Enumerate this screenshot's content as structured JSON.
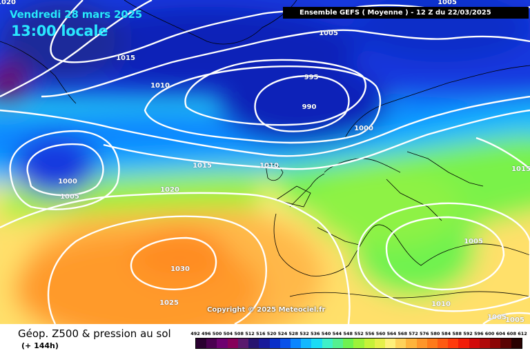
{
  "header": {
    "date": "Vendredi 28 mars 2025",
    "time": "13:00 locale",
    "run": "Ensemble GEFS  ( Moyenne )  -  12 Z du 22/03/2025"
  },
  "copyright": "Copyright © 2025 Meteociel.fr",
  "footer": {
    "title": "Géop. Z500 & pression au sol",
    "subtitle": "(+ 144h)"
  },
  "isobar_labels": [
    "1005",
    "1015",
    "1010",
    "995",
    "990",
    "1000",
    "1015",
    "1010",
    "1000",
    "1005",
    "1020",
    "1030",
    "1025",
    "1005",
    "1010",
    "1005",
    "1005",
    "1015",
    "1020",
    "1005"
  ],
  "color_scale": {
    "labels": [
      "492",
      "496",
      "500",
      "504",
      "508",
      "512",
      "516",
      "520",
      "524",
      "528",
      "532",
      "536",
      "540",
      "544",
      "548",
      "552",
      "556",
      "560",
      "564",
      "568",
      "572",
      "576",
      "580",
      "584",
      "588",
      "592",
      "596",
      "600",
      "604",
      "608",
      "612"
    ],
    "colors": [
      "#2a0030",
      "#4a0050",
      "#6e0070",
      "#86005a",
      "#5a1a6e",
      "#27146f",
      "#1a1a9a",
      "#0a2fc9",
      "#0a52ea",
      "#0b86ff",
      "#12b8ff",
      "#1adcf5",
      "#3ef0c8",
      "#54f090",
      "#6ef250",
      "#9cf23a",
      "#c6f238",
      "#e6f04a",
      "#fff07a",
      "#ffd25a",
      "#ffb43c",
      "#ff962a",
      "#ff7a1a",
      "#ff5a12",
      "#ff3a0c",
      "#f21c08",
      "#d20a0a",
      "#b00a0a",
      "#8c0606",
      "#5a0404",
      "#2a0202"
    ]
  },
  "colors": {
    "deep_blue": "#0a1ea8",
    "blue": "#1538df",
    "light_blue": "#0c86ff",
    "cyan": "#1fe0f0",
    "green": "#6ef25a",
    "yellow": "#fff080",
    "orange": "#ffa42a"
  }
}
